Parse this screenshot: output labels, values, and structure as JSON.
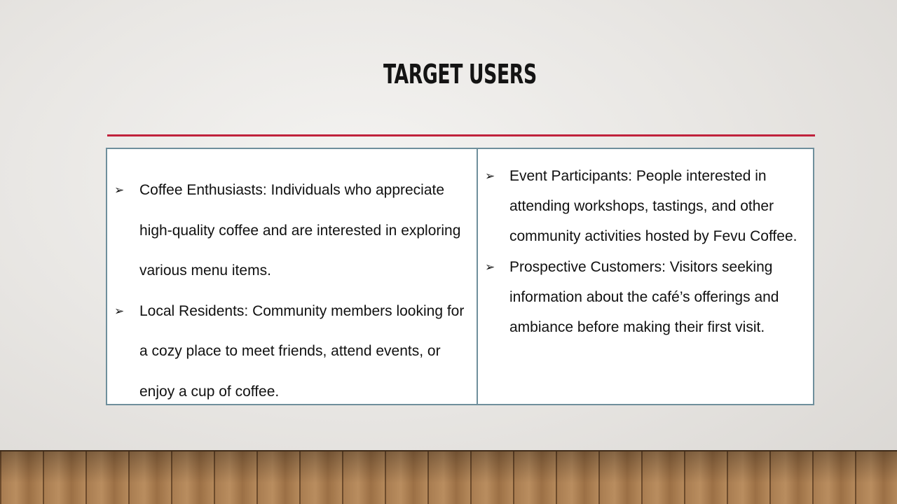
{
  "slide": {
    "title": "TARGET USERS"
  },
  "columns": [
    {
      "items": [
        {
          "bullet": "➢",
          "text": "Coffee Enthusiasts: Individuals who appreciate high-quality coffee and are interested in exploring various menu items."
        },
        {
          "bullet": "➢",
          "text": "Local Residents: Community members looking for a cozy place to meet friends, attend events, or enjoy a cup of coffee."
        }
      ]
    },
    {
      "items": [
        {
          "bullet": "➢",
          "text": "Event Participants: People interested in attending workshops, tastings, and other community activities hosted by Fevu Coffee."
        },
        {
          "bullet": "➢",
          "text": "Prospective Customers: Visitors seeking information about the café’s offerings and ambiance before making their first visit."
        }
      ]
    }
  ],
  "colors": {
    "accent_rule": "#c0223c",
    "table_border": "#6f8f9c"
  }
}
